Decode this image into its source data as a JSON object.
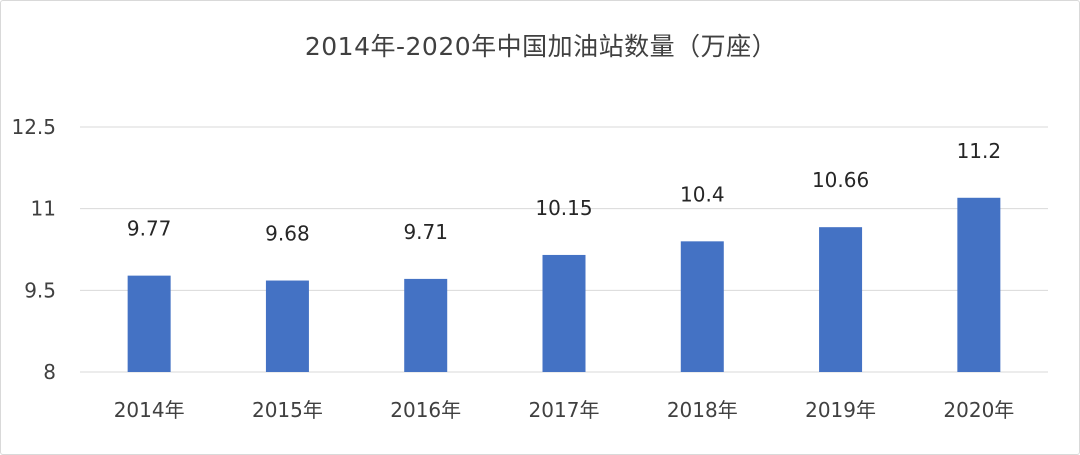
{
  "chart_data": {
    "type": "bar",
    "title": "2014年-2020年中国加油站数量（万座）",
    "categories": [
      "2014年",
      "2015年",
      "2016年",
      "2017年",
      "2018年",
      "2019年",
      "2020年"
    ],
    "values": [
      9.77,
      9.68,
      9.71,
      10.15,
      10.4,
      10.66,
      11.2
    ],
    "value_labels": [
      "9.77",
      "9.68",
      "9.71",
      "10.15",
      "10.4",
      "10.66",
      "11.2"
    ],
    "yticks": [
      "8",
      "9.5",
      "11",
      "12.5"
    ],
    "ylim": [
      8,
      12.5
    ],
    "grid": true,
    "bar_color": "#4472c4",
    "legend": "none"
  }
}
